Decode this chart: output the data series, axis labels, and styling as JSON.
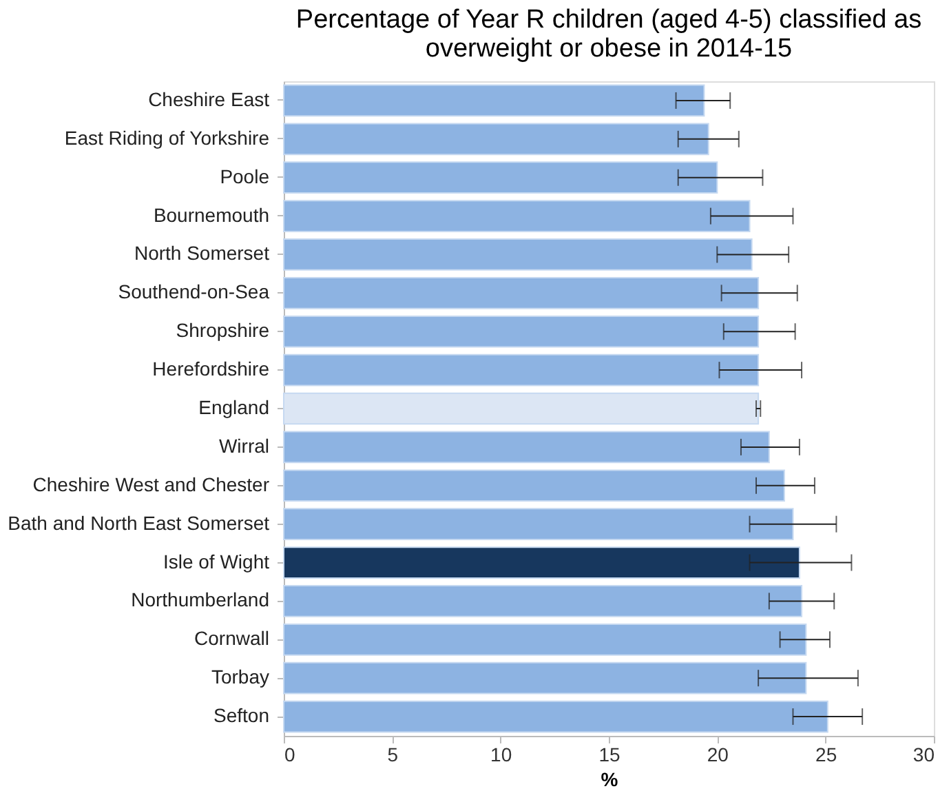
{
  "chart_data": {
    "type": "bar",
    "orientation": "horizontal",
    "title": "Percentage of Year R children (aged 4-5) classified as\noverweight or obese in 2014-15",
    "xlabel": "%",
    "categories": [
      "Cheshire East",
      "East Riding of Yorkshire",
      "Poole",
      "Bournemouth",
      "North Somerset",
      "Southend-on-Sea",
      "Shropshire",
      "Herefordshire",
      "England",
      "Wirral",
      "Cheshire West and Chester",
      "Bath and North East Somerset",
      "Isle of Wight",
      "Northumberland",
      "Cornwall",
      "Torbay",
      "Sefton"
    ],
    "values": [
      19.4,
      19.6,
      20.0,
      21.5,
      21.6,
      21.9,
      21.9,
      21.9,
      21.9,
      22.4,
      23.1,
      23.5,
      23.8,
      23.9,
      24.1,
      24.1,
      25.1
    ],
    "colors": [
      "#8db3e2",
      "#8db3e2",
      "#8db3e2",
      "#8db3e2",
      "#8db3e2",
      "#8db3e2",
      "#8db3e2",
      "#8db3e2",
      "#dce6f4",
      "#8db3e2",
      "#8db3e2",
      "#8db3e2",
      "#17375e",
      "#8db3e2",
      "#8db3e2",
      "#8db3e2",
      "#8db3e2"
    ],
    "errors": [
      [
        18.1,
        20.6
      ],
      [
        18.2,
        21.0
      ],
      [
        18.2,
        22.1
      ],
      [
        19.7,
        23.5
      ],
      [
        20.0,
        23.3
      ],
      [
        20.2,
        23.7
      ],
      [
        20.3,
        23.6
      ],
      [
        20.1,
        23.9
      ],
      [
        21.8,
        22.0
      ],
      [
        21.1,
        23.8
      ],
      [
        21.8,
        24.5
      ],
      [
        21.5,
        25.5
      ],
      [
        21.5,
        26.2
      ],
      [
        22.4,
        25.4
      ],
      [
        22.9,
        25.2
      ],
      [
        21.9,
        26.5
      ],
      [
        23.5,
        26.7
      ]
    ],
    "xlim": [
      0,
      30
    ],
    "xticks": [
      0,
      5,
      10,
      15,
      20,
      25,
      30
    ],
    "grid": false
  }
}
